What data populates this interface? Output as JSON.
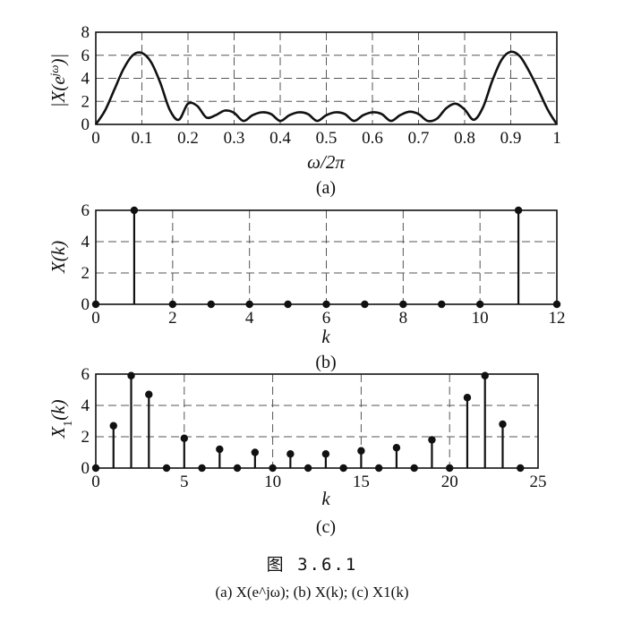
{
  "chart_data": [
    {
      "type": "line",
      "panel_label": "(a)",
      "xlabel": "ω/2π",
      "ylabel": "|X(e^jω)|",
      "xlim": [
        0,
        1
      ],
      "ylim": [
        0,
        8
      ],
      "xticks": [
        "0",
        "0.1",
        "0.2",
        "0.3",
        "0.4",
        "0.5",
        "0.6",
        "0.7",
        "0.8",
        "0.9",
        "1"
      ],
      "yticks": [
        "0",
        "2",
        "4",
        "6",
        "8"
      ],
      "grid": true,
      "x": [
        0,
        0.02,
        0.04,
        0.06,
        0.08,
        0.1,
        0.12,
        0.14,
        0.16,
        0.18,
        0.2,
        0.22,
        0.24,
        0.26,
        0.28,
        0.3,
        0.32,
        0.34,
        0.36,
        0.38,
        0.4,
        0.42,
        0.44,
        0.46,
        0.48,
        0.5,
        0.52,
        0.54,
        0.56,
        0.58,
        0.6,
        0.62,
        0.64,
        0.66,
        0.68,
        0.7,
        0.72,
        0.74,
        0.76,
        0.78,
        0.8,
        0.82,
        0.84,
        0.86,
        0.88,
        0.9,
        0.92,
        0.94,
        0.96,
        0.98,
        1
      ],
      "y": [
        0,
        1.2,
        3.0,
        4.8,
        6.0,
        6.2,
        5.4,
        3.6,
        1.3,
        0.4,
        1.8,
        1.6,
        0.6,
        0.8,
        1.2,
        1.0,
        0.3,
        0.8,
        1.05,
        0.9,
        0.3,
        0.8,
        1.05,
        0.9,
        0.3,
        0.8,
        1.05,
        0.9,
        0.3,
        0.8,
        1.05,
        0.9,
        0.3,
        0.8,
        1.1,
        0.9,
        0.3,
        0.5,
        1.4,
        1.8,
        1.3,
        0.4,
        1.5,
        3.8,
        5.6,
        6.3,
        5.9,
        4.6,
        3.0,
        1.3,
        0
      ]
    },
    {
      "type": "stem",
      "panel_label": "(b)",
      "xlabel": "k",
      "ylabel": "X(k)",
      "xlim": [
        0,
        12
      ],
      "ylim": [
        0,
        6
      ],
      "xticks": [
        "0",
        "2",
        "4",
        "6",
        "8",
        "10",
        "12"
      ],
      "yticks": [
        "0",
        "2",
        "4",
        "6"
      ],
      "grid": true,
      "x": [
        0,
        1,
        2,
        3,
        4,
        5,
        6,
        7,
        8,
        9,
        10,
        11,
        12
      ],
      "y": [
        0,
        6,
        0,
        0,
        0,
        0,
        0,
        0,
        0,
        0,
        0,
        6,
        0
      ]
    },
    {
      "type": "stem",
      "panel_label": "(c)",
      "xlabel": "k",
      "ylabel": "X1(k)",
      "xlim": [
        0,
        25
      ],
      "ylim": [
        0,
        6
      ],
      "xticks": [
        "0",
        "5",
        "10",
        "15",
        "20",
        "25"
      ],
      "yticks": [
        "0",
        "2",
        "4",
        "6"
      ],
      "grid": true,
      "x": [
        0,
        1,
        2,
        3,
        4,
        5,
        6,
        7,
        8,
        9,
        10,
        11,
        12,
        13,
        14,
        15,
        16,
        17,
        18,
        19,
        20,
        21,
        22,
        23,
        24
      ],
      "y": [
        0,
        2.7,
        5.9,
        4.7,
        0,
        1.9,
        0,
        1.2,
        0,
        1.0,
        0,
        0.9,
        0,
        0.9,
        0,
        1.1,
        0,
        1.3,
        0,
        1.8,
        0,
        4.5,
        5.9,
        2.8,
        0
      ]
    }
  ],
  "caption": {
    "figure": "图   3.6.1",
    "subtitle": "(a) X(e^jω); (b) X(k); (c) X1(k)"
  }
}
